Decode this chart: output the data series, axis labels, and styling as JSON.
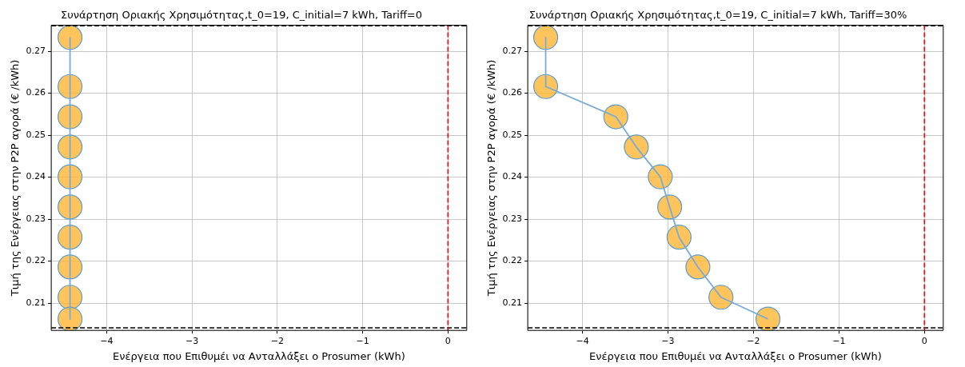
{
  "chart_data": [
    {
      "type": "line",
      "title": "Συνάρτηση Οριακής Χρησιμότητας,t_0=19, C_initial=7 kWh, Tariff=0",
      "xlabel": "Ενέργεια που Επιθυμέι να Ανταλλάξει ο Prosumer (kWh)",
      "ylabel": "Τιμή της Ενέργειας στην P2P αγορά (€ /kWh)",
      "xlim": [
        -4.65,
        0.22
      ],
      "xticks": [
        {
          "value": -4,
          "label": "−4"
        },
        {
          "value": -3,
          "label": "−3"
        },
        {
          "value": -2,
          "label": "−2"
        },
        {
          "value": -1,
          "label": "−1"
        },
        0
      ],
      "ylim": [
        0.2035,
        0.2762
      ],
      "yticks": [
        0.21,
        0.22,
        0.23,
        0.24,
        0.25,
        0.26,
        0.27
      ],
      "grid": true,
      "legend": false,
      "series": [
        {
          "color": "#77aad6",
          "marker": "none",
          "line_style": "solid",
          "x": [
            -4.43,
            -4.43,
            -4.43,
            -4.43,
            -4.43,
            -4.43,
            -4.43,
            -4.43,
            -4.43,
            -4.43
          ],
          "values": [
            0.2733,
            0.2616,
            0.2544,
            0.2472,
            0.2401,
            0.2329,
            0.2257,
            0.2186,
            0.2114,
            0.2062
          ]
        },
        {
          "type": "scatter",
          "color": "#ffb733",
          "marker": "circle",
          "x": [
            -4.43,
            -4.43,
            -4.43,
            -4.43,
            -4.43,
            -4.43,
            -4.43,
            -4.43,
            -4.43,
            -4.43
          ],
          "values": [
            0.2733,
            0.2616,
            0.2544,
            0.2472,
            0.2401,
            0.2329,
            0.2257,
            0.2186,
            0.2114,
            0.2062
          ]
        }
      ],
      "ref_lines": [
        {
          "axis": "y",
          "value": 0.2761,
          "color": "#000000",
          "line_style": "dashed"
        },
        {
          "axis": "y",
          "value": 0.2041,
          "color": "#000000",
          "line_style": "dashed"
        },
        {
          "axis": "x",
          "value": 0,
          "color": "#ff0000",
          "line_style": "dashed"
        }
      ]
    },
    {
      "type": "line",
      "title": "Συνάρτηση Οριακής Χρησιμότητας,t_0=19, C_initial=7 kWh, Tariff=30%",
      "xlabel": "Ενέργεια που Επιθυμέι να Ανταλλάξει ο Prosumer (kWh)",
      "ylabel": "Τιμή της Ενέργειας στην P2P αγορά (€ /kWh)",
      "xlim": [
        -4.64,
        0.22
      ],
      "xticks": [
        {
          "value": -4,
          "label": "−4"
        },
        {
          "value": -3,
          "label": "−3"
        },
        {
          "value": -2,
          "label": "−2"
        },
        {
          "value": -1,
          "label": "−1"
        },
        0
      ],
      "ylim": [
        0.2035,
        0.2762
      ],
      "yticks": [
        0.21,
        0.22,
        0.23,
        0.24,
        0.25,
        0.26,
        0.27
      ],
      "grid": true,
      "legend": false,
      "series": [
        {
          "color": "#77aad6",
          "marker": "none",
          "line_style": "solid",
          "x": [
            -4.43,
            -4.43,
            -3.61,
            -3.37,
            -3.09,
            -2.98,
            -2.87,
            -2.65,
            -2.38,
            -1.83
          ],
          "values": [
            0.2733,
            0.2616,
            0.2544,
            0.2472,
            0.2401,
            0.2329,
            0.2257,
            0.2186,
            0.2114,
            0.2062
          ]
        },
        {
          "type": "scatter",
          "color": "#ffb733",
          "marker": "circle",
          "x": [
            -4.43,
            -4.43,
            -3.61,
            -3.37,
            -3.09,
            -2.98,
            -2.87,
            -2.65,
            -2.38,
            -1.83
          ],
          "values": [
            0.2733,
            0.2616,
            0.2544,
            0.2472,
            0.2401,
            0.2329,
            0.2257,
            0.2186,
            0.2114,
            0.2062
          ]
        }
      ],
      "ref_lines": [
        {
          "axis": "y",
          "value": 0.2761,
          "color": "#000000",
          "line_style": "dashed"
        },
        {
          "axis": "y",
          "value": 0.2041,
          "color": "#000000",
          "line_style": "dashed"
        },
        {
          "axis": "x",
          "value": 0,
          "color": "#ff0000",
          "line_style": "dashed"
        }
      ]
    }
  ]
}
